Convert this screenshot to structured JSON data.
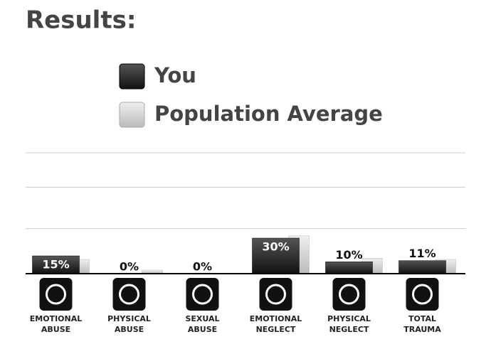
{
  "chart_data": {
    "type": "bar",
    "title": "Results:",
    "categories": [
      [
        "EMOTIONAL",
        "ABUSE"
      ],
      [
        "PHYSICAL",
        "ABUSE"
      ],
      [
        "SEXUAL",
        "ABUSE"
      ],
      [
        "EMOTIONAL",
        "NEGLECT"
      ],
      [
        "PHYSICAL",
        "NEGLECT"
      ],
      [
        "TOTAL",
        "TRAUMA"
      ]
    ],
    "series": [
      {
        "name": "You",
        "color": "#1e1e1e",
        "values": [
          15,
          0,
          0,
          30,
          10,
          11
        ],
        "value_labels": [
          "15%",
          "0%",
          "0%",
          "30%",
          "10%",
          "11%"
        ]
      },
      {
        "name": "Population Average",
        "color": "#dcdcdc",
        "values": [
          12,
          3,
          0,
          32,
          13,
          12
        ]
      }
    ],
    "ylim": [
      0,
      102
    ],
    "ygrid": [
      38,
      73,
      102
    ],
    "grid": true
  }
}
